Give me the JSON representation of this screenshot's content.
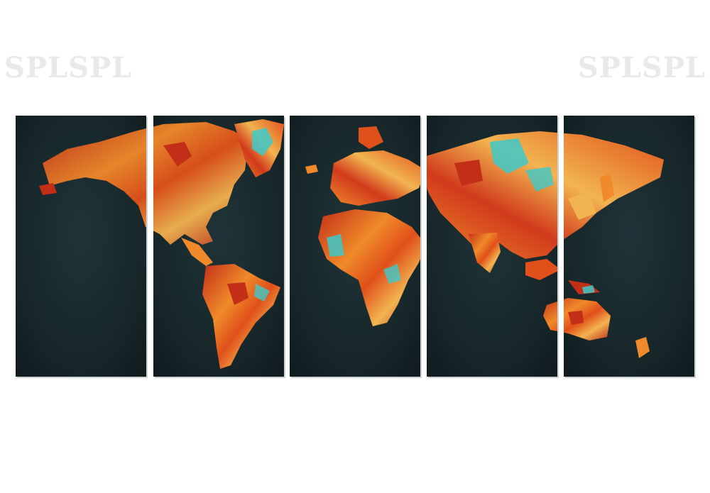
{
  "watermark": {
    "left_text": "SPLSPL",
    "right_text": "SPLSPL"
  },
  "artwork": {
    "panel_count": 5,
    "background_color": "#1d2f33",
    "land_colors": [
      "#e0501a",
      "#f08a2a",
      "#c22e18",
      "#3ec9c9",
      "#f2b450"
    ]
  }
}
